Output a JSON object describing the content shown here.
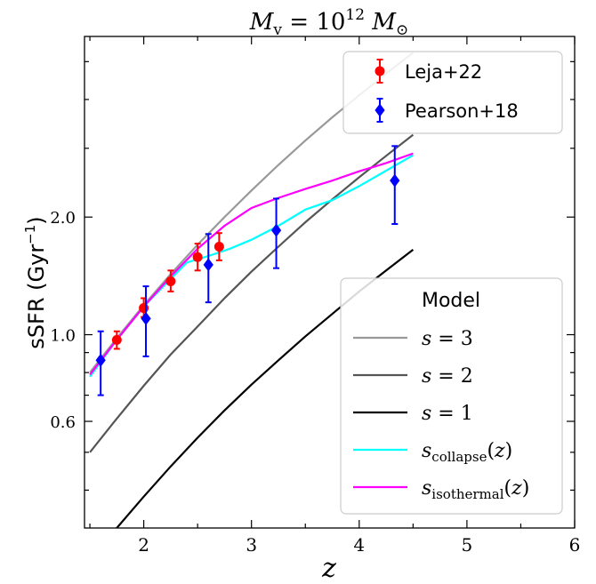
{
  "chart_data": {
    "type": "line",
    "title": "M_v = 10^12 M_⊙",
    "xlabel": "z",
    "ylabel": "sSFR (Gyr⁻¹)",
    "xlim": [
      1.45,
      6.0
    ],
    "ylim": [
      0.32,
      5.8
    ],
    "yscale": "log",
    "x_ticks": [
      2,
      3,
      4,
      5,
      6
    ],
    "y_ticks": [
      0.6,
      1.0,
      2.0
    ],
    "y_tick_labels": [
      "0.6",
      "1.0",
      "2.0"
    ],
    "grid": false,
    "legends": [
      {
        "placement": "top-right",
        "entries": [
          "Leja+22",
          "Pearson+18"
        ]
      },
      {
        "placement": "bottom-right",
        "title": "Model",
        "entries": [
          "s = 3",
          "s = 2",
          "s = 1",
          "s_collapse(z)",
          "s_isothermal(z)"
        ]
      }
    ],
    "series": [
      {
        "name": "s = 3",
        "kind": "line",
        "color": "#999999",
        "x": [
          1.5,
          1.75,
          2.0,
          2.25,
          2.5,
          2.75,
          3.0,
          3.25,
          3.5,
          3.75,
          4.0,
          4.25,
          4.5
        ],
        "y": [
          0.8,
          0.98,
          1.19,
          1.43,
          1.7,
          2.0,
          2.34,
          2.72,
          3.14,
          3.6,
          4.1,
          4.66,
          5.27
        ]
      },
      {
        "name": "s = 2",
        "kind": "line",
        "color": "#555555",
        "x": [
          1.5,
          1.75,
          2.0,
          2.25,
          2.5,
          2.75,
          3.0,
          3.25,
          3.5,
          3.75,
          4.0,
          4.25,
          4.5
        ],
        "y": [
          0.5,
          0.61,
          0.74,
          0.89,
          1.05,
          1.24,
          1.45,
          1.68,
          1.94,
          2.22,
          2.53,
          2.87,
          3.25
        ]
      },
      {
        "name": "s = 1",
        "kind": "line",
        "color": "#000000",
        "x": [
          1.5,
          1.75,
          2.0,
          2.25,
          2.5,
          2.75,
          3.0,
          3.25,
          3.5,
          3.75,
          4.0,
          4.25,
          4.5
        ],
        "y": [
          0.26,
          0.32,
          0.385,
          0.46,
          0.545,
          0.64,
          0.745,
          0.86,
          0.99,
          1.13,
          1.29,
          1.46,
          1.65
        ]
      },
      {
        "name": "s_collapse(z)",
        "kind": "line",
        "color": "#00ffff",
        "x": [
          1.5,
          1.75,
          2.0,
          2.25,
          2.4,
          2.6,
          2.8,
          3.0,
          3.25,
          3.5,
          3.75,
          4.0,
          4.25,
          4.5
        ],
        "y": [
          0.78,
          0.97,
          1.18,
          1.39,
          1.53,
          1.59,
          1.66,
          1.75,
          1.9,
          2.09,
          2.21,
          2.4,
          2.63,
          2.88
        ]
      },
      {
        "name": "s_isothermal(z)",
        "kind": "line",
        "color": "#ff00ff",
        "x": [
          1.5,
          1.75,
          2.0,
          2.25,
          2.5,
          2.75,
          3.0,
          3.25,
          3.5,
          3.75,
          4.0,
          4.25,
          4.5
        ],
        "y": [
          0.79,
          0.97,
          1.18,
          1.41,
          1.66,
          1.9,
          2.11,
          2.24,
          2.36,
          2.48,
          2.62,
          2.75,
          2.91
        ]
      },
      {
        "name": "Leja+22",
        "kind": "errorbar",
        "marker": "circle",
        "color": "#ff0000",
        "x": [
          1.75,
          2.0,
          2.25,
          2.5,
          2.7
        ],
        "y": [
          0.97,
          1.17,
          1.37,
          1.58,
          1.68
        ],
        "yerr_low": [
          0.05,
          0.06,
          0.08,
          0.12,
          0.13
        ],
        "yerr_high": [
          0.05,
          0.07,
          0.09,
          0.13,
          0.14
        ]
      },
      {
        "name": "Pearson+18",
        "kind": "errorbar",
        "marker": "diamond",
        "color": "#0000ff",
        "x": [
          1.6,
          2.02,
          2.6,
          3.23,
          4.33
        ],
        "y": [
          0.86,
          1.1,
          1.51,
          1.85,
          2.48
        ],
        "yerr_low": [
          0.16,
          0.22,
          0.3,
          0.37,
          0.56
        ],
        "yerr_high": [
          0.16,
          0.23,
          0.3,
          0.38,
          0.56
        ]
      }
    ]
  }
}
